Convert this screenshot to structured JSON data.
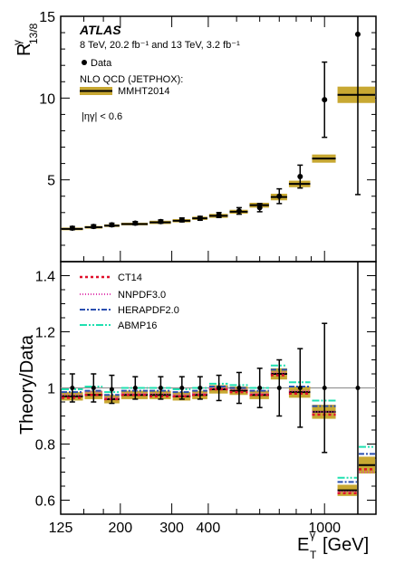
{
  "chart_data": [
    {
      "type": "scatter",
      "panel": "top",
      "ylabel": "R",
      "ylabel_sup": "γ",
      "ylabel_sub": "13/8",
      "ylim": [
        0,
        15
      ],
      "yticks": [
        5,
        10,
        15
      ],
      "x_scale": "log",
      "xlim": [
        125,
        1500
      ],
      "atlas_label": "ATLAS",
      "energy_text": "8 TeV, 20.2 fb⁻¹ and 13 TeV, 3.2 fb⁻¹",
      "legend_data": "Data",
      "legend_theory_header": "NLO QCD (JETPHOX):",
      "legend_theory": "MMHT2014",
      "eta_cut": "|ηγ| < 0.6",
      "colors": {
        "theory_band": "#c8a832",
        "theory_line": "#000000"
      },
      "bins": [
        [
          125,
          150
        ],
        [
          150,
          175
        ],
        [
          175,
          200
        ],
        [
          200,
          250
        ],
        [
          250,
          300
        ],
        [
          300,
          350
        ],
        [
          350,
          400
        ],
        [
          400,
          470
        ],
        [
          470,
          550
        ],
        [
          550,
          650
        ],
        [
          650,
          750
        ],
        [
          750,
          900
        ],
        [
          900,
          1100
        ],
        [
          1100,
          1500
        ]
      ],
      "data": [
        {
          "x": 137,
          "y": 2.05,
          "err": 0.1
        },
        {
          "x": 162,
          "y": 2.15,
          "err": 0.1
        },
        {
          "x": 187,
          "y": 2.25,
          "err": 0.1
        },
        {
          "x": 225,
          "y": 2.35,
          "err": 0.1
        },
        {
          "x": 275,
          "y": 2.45,
          "err": 0.1
        },
        {
          "x": 325,
          "y": 2.55,
          "err": 0.12
        },
        {
          "x": 375,
          "y": 2.65,
          "err": 0.12
        },
        {
          "x": 435,
          "y": 2.85,
          "err": 0.15
        },
        {
          "x": 510,
          "y": 3.1,
          "err": 0.2
        },
        {
          "x": 600,
          "y": 3.3,
          "err": 0.25
        },
        {
          "x": 700,
          "y": 4.0,
          "err": 0.45
        },
        {
          "x": 825,
          "y": 5.2,
          "err": 0.7
        },
        {
          "x": 1000,
          "y": 9.9,
          "err": 2.3
        },
        {
          "x": 1300,
          "y": 13.9,
          "err": 9.8
        }
      ],
      "theory": [
        {
          "y": 2.0,
          "band": 0.08
        },
        {
          "y": 2.1,
          "band": 0.08
        },
        {
          "y": 2.2,
          "band": 0.08
        },
        {
          "y": 2.3,
          "band": 0.08
        },
        {
          "y": 2.4,
          "band": 0.1
        },
        {
          "y": 2.5,
          "band": 0.1
        },
        {
          "y": 2.65,
          "band": 0.1
        },
        {
          "y": 2.8,
          "band": 0.12
        },
        {
          "y": 3.05,
          "band": 0.12
        },
        {
          "y": 3.45,
          "band": 0.15
        },
        {
          "y": 3.95,
          "band": 0.2
        },
        {
          "y": 4.75,
          "band": 0.2
        },
        {
          "y": 6.3,
          "band": 0.25
        },
        {
          "y": 10.2,
          "band": 0.5
        }
      ]
    },
    {
      "type": "scatter",
      "panel": "bottom",
      "ylabel": "Theory/Data",
      "xlabel": "E",
      "xlabel_sup": "γ",
      "xlabel_sub": "T",
      "xlabel_unit": "[GeV]",
      "ylim": [
        0.55,
        1.45
      ],
      "yticks": [
        "0.6",
        "0.8",
        "1",
        "1.2",
        "1.4"
      ],
      "x_scale": "log",
      "xlim": [
        125,
        1500
      ],
      "xticks": [
        125,
        200,
        300,
        400,
        1000
      ],
      "colors": {
        "CT14": "#e0102a",
        "NNPDF3.0": "#e040b0",
        "HERAPDF2.0": "#2a4fb0",
        "ABMP16": "#20e0b0",
        "band": "#c8a832",
        "unity": "#888888"
      },
      "legend": [
        "CT14",
        "NNPDF3.0",
        "HERAPDF2.0",
        "ABMP16"
      ],
      "data": [
        {
          "x": 137,
          "y": 1.0,
          "err": 0.05
        },
        {
          "x": 162,
          "y": 1.0,
          "err": 0.05
        },
        {
          "x": 187,
          "y": 0.995,
          "err": 0.05
        },
        {
          "x": 225,
          "y": 1.0,
          "err": 0.04
        },
        {
          "x": 275,
          "y": 1.0,
          "err": 0.04
        },
        {
          "x": 325,
          "y": 1.0,
          "err": 0.04
        },
        {
          "x": 375,
          "y": 1.0,
          "err": 0.04
        },
        {
          "x": 435,
          "y": 1.0,
          "err": 0.045
        },
        {
          "x": 510,
          "y": 1.0,
          "err": 0.055
        },
        {
          "x": 600,
          "y": 1.0,
          "err": 0.07
        },
        {
          "x": 700,
          "y": 1.0,
          "err": 0.1
        },
        {
          "x": 825,
          "y": 1.0,
          "err": 0.14
        },
        {
          "x": 1000,
          "y": 1.0,
          "err": 0.23
        },
        {
          "x": 1300,
          "y": 1.0,
          "err": 0.7
        }
      ],
      "series": [
        {
          "name": "MMHT2014",
          "values": [
            0.97,
            0.975,
            0.96,
            0.975,
            0.975,
            0.97,
            0.975,
            0.995,
            0.99,
            0.975,
            1.05,
            0.985,
            0.915,
            0.635,
            0.725
          ]
        },
        {
          "name": "CT14",
          "values": [
            0.965,
            0.975,
            0.96,
            0.975,
            0.97,
            0.97,
            0.975,
            0.995,
            0.985,
            0.975,
            1.045,
            0.98,
            0.905,
            0.625,
            0.71
          ]
        },
        {
          "name": "NNPDF3.0",
          "values": [
            0.975,
            0.985,
            0.965,
            0.98,
            0.98,
            0.975,
            0.98,
            1.0,
            0.995,
            0.98,
            1.055,
            0.99,
            0.915,
            0.63,
            0.7
          ]
        },
        {
          "name": "HERAPDF2.0",
          "values": [
            0.985,
            0.99,
            0.975,
            0.99,
            0.99,
            0.985,
            0.99,
            1.005,
            1.0,
            0.99,
            1.065,
            1.005,
            0.935,
            0.665,
            0.765
          ]
        },
        {
          "name": "ABMP16",
          "values": [
            0.995,
            1.005,
            0.985,
            1.0,
            1.0,
            0.995,
            1.0,
            1.015,
            1.01,
            1.0,
            1.08,
            1.02,
            0.955,
            0.68,
            0.79
          ]
        }
      ],
      "band": [
        0.015,
        0.015,
        0.015,
        0.015,
        0.015,
        0.015,
        0.015,
        0.015,
        0.015,
        0.015,
        0.02,
        0.02,
        0.025,
        0.02,
        0.03
      ]
    }
  ]
}
